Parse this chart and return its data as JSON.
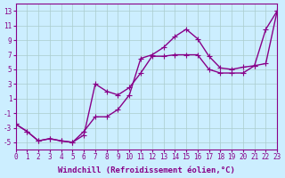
{
  "xlabel": "Windchill (Refroidissement éolien,°C)",
  "ylabel": "",
  "bg_color": "#cceeff",
  "grid_color": "#aacccc",
  "line_color": "#880088",
  "curve1_x": [
    0,
    1,
    2,
    3,
    4,
    5,
    6,
    7,
    8,
    9,
    10,
    11,
    12,
    13,
    14,
    15,
    16,
    17,
    18,
    19,
    20,
    21,
    22,
    23
  ],
  "curve1_y": [
    -2.5,
    -3.5,
    -4.8,
    -4.5,
    -4.8,
    -5.0,
    -3.5,
    -1.5,
    -1.5,
    -0.5,
    1.5,
    6.5,
    7.0,
    8.0,
    9.5,
    10.5,
    9.2,
    6.8,
    5.2,
    5.0,
    5.3,
    5.5,
    10.5,
    13.0
  ],
  "curve2_x": [
    0,
    1,
    2,
    3,
    4,
    5,
    6,
    7,
    8,
    9,
    10,
    11,
    12,
    13,
    14,
    15,
    16,
    17,
    18,
    19,
    20,
    21,
    22,
    23
  ],
  "curve2_y": [
    -2.5,
    -3.5,
    -4.8,
    -4.5,
    -4.8,
    -5.0,
    -4.0,
    3.0,
    2.0,
    1.5,
    2.5,
    4.5,
    6.8,
    6.8,
    7.0,
    7.0,
    7.0,
    5.0,
    4.5,
    4.5,
    4.5,
    5.5,
    5.8,
    13.0
  ],
  "xlim": [
    0,
    23
  ],
  "ylim": [
    -6,
    14
  ],
  "yticks": [
    -5,
    -3,
    -1,
    1,
    3,
    5,
    7,
    9,
    11,
    13
  ],
  "xticks": [
    0,
    1,
    2,
    3,
    4,
    5,
    6,
    7,
    8,
    9,
    10,
    11,
    12,
    13,
    14,
    15,
    16,
    17,
    18,
    19,
    20,
    21,
    22,
    23
  ],
  "marker": "+",
  "markersize": 4,
  "linewidth": 1.0,
  "xlabel_fontsize": 6.5,
  "tick_fontsize": 5.5,
  "label_color": "#880088"
}
